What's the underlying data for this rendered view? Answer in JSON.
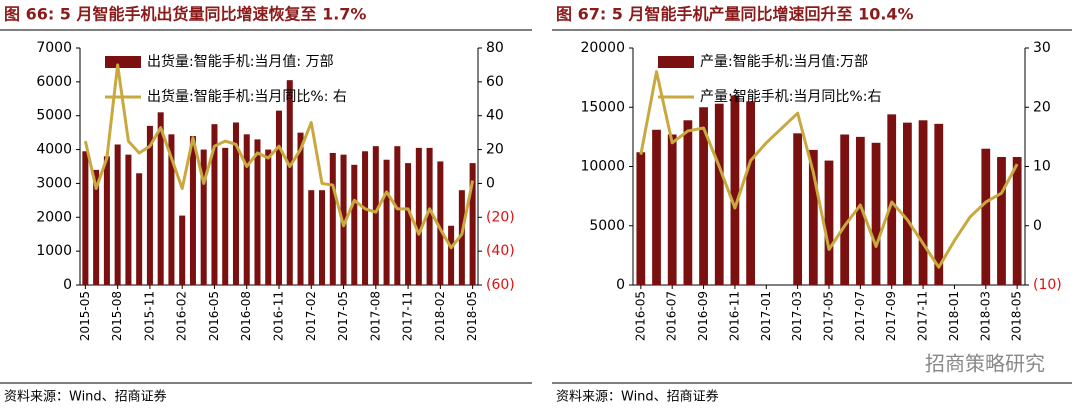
{
  "chart_data": [
    {
      "type": "combo",
      "title": "图 66:  5 月智能手机出货量同比增速恢复至 1.7%",
      "source": "资料来源：Wind、招商证券",
      "categories": [
        "2015-05",
        null,
        null,
        "2015-08",
        null,
        null,
        "2015-11",
        null,
        null,
        "2016-02",
        null,
        null,
        "2016-05",
        null,
        null,
        "2016-08",
        null,
        null,
        "2016-11",
        null,
        null,
        "2017-02",
        null,
        null,
        "2017-05",
        null,
        null,
        "2017-08",
        null,
        null,
        "2017-11",
        null,
        null,
        "2018-02",
        null,
        null,
        "2018-05"
      ],
      "series": [
        {
          "name": "出货量:智能手机:当月值: 万部",
          "kind": "bar",
          "color": "#7a1010",
          "values": [
            3950,
            3400,
            3800,
            4150,
            3850,
            3300,
            4700,
            5100,
            4450,
            2050,
            4400,
            4000,
            4750,
            4050,
            4800,
            4450,
            4300,
            4000,
            5150,
            6050,
            4500,
            2800,
            2800,
            3900,
            3850,
            3550,
            3950,
            4100,
            3700,
            4100,
            3600,
            4050,
            4050,
            3650,
            1750,
            2800,
            3600
          ]
        },
        {
          "name": "出货量:智能手机:当月同比%: 右",
          "kind": "line",
          "axis": "y2",
          "color": "#c9a93f",
          "values": [
            25,
            -3,
            15,
            70,
            25,
            18,
            22,
            33,
            15,
            -3,
            27,
            0,
            22,
            25,
            23,
            10,
            18,
            15,
            22,
            10,
            20,
            36,
            0,
            -1,
            -25,
            -10,
            -15,
            -17,
            -5,
            -15,
            -15,
            -30,
            -15,
            -27,
            -38,
            -30,
            1.7
          ]
        }
      ],
      "ylim": [
        0,
        7000
      ],
      "yticks": [
        0,
        1000,
        2000,
        3000,
        4000,
        5000,
        6000,
        7000
      ],
      "y2lim": [
        -60,
        80
      ],
      "y2ticks": [
        {
          "value": -60,
          "label": "(60)"
        },
        {
          "value": -40,
          "label": "(40)"
        },
        {
          "value": -20,
          "label": "(20)"
        },
        0,
        20,
        40,
        60,
        80
      ],
      "legend": "upper left"
    },
    {
      "type": "combo",
      "title": "图 67:  5 月智能手机产量同比增速回升至 10.4%",
      "source": "资料来源：Wind、招商证券",
      "categories": [
        "2016-05",
        null,
        "2016-07",
        null,
        "2016-09",
        null,
        "2016-11",
        null,
        "2017-01",
        null,
        "2017-03",
        null,
        "2017-05",
        null,
        "2017-07",
        null,
        "2017-09",
        null,
        "2017-11",
        null,
        "2018-01",
        null,
        "2018-03",
        null,
        "2018-05"
      ],
      "series": [
        {
          "name": "产量:智能手机:当月值:万部",
          "kind": "bar",
          "color": "#7a1010",
          "values": [
            11200,
            13100,
            12700,
            13900,
            15000,
            15300,
            16000,
            15500,
            null,
            null,
            12800,
            11400,
            10500,
            12700,
            12500,
            12000,
            14400,
            13700,
            13900,
            13600,
            null,
            null,
            11500,
            10800,
            10800
          ]
        },
        {
          "name": "产量:智能手机:当月同比%:右",
          "kind": "line",
          "axis": "y2",
          "color": "#c9a93f",
          "values": [
            12,
            26,
            14,
            16,
            16.5,
            10,
            3,
            11,
            14,
            16.5,
            19,
            9,
            -4,
            0,
            3.5,
            -3.5,
            4,
            1,
            -3,
            -7,
            -2.5,
            1.5,
            4,
            5.5,
            10.4
          ]
        }
      ],
      "ylim": [
        0,
        20000
      ],
      "yticks": [
        0,
        5000,
        10000,
        15000,
        20000
      ],
      "y2lim": [
        -10,
        30
      ],
      "y2ticks": [
        {
          "value": -10,
          "label": "(10)"
        },
        0,
        10,
        20,
        30
      ],
      "legend": "upper left"
    }
  ],
  "watermark": "招商策略研究"
}
